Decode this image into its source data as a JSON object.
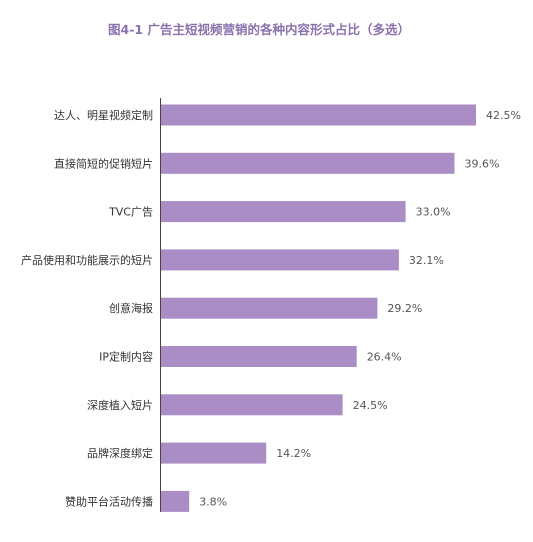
{
  "chart_data": {
    "type": "bar",
    "orientation": "horizontal",
    "title": "图4-1 广告主短视频营销的各种内容形式占比（多选）",
    "categories": [
      "达人、明星视频定制",
      "直接简短的促销短片",
      "TVC广告",
      "产品使用和功能展示的短片",
      "创意海报",
      "IP定制内容",
      "深度植入短片",
      "品牌深度绑定",
      "赞助平台活动传播"
    ],
    "values": [
      42.5,
      39.6,
      33.0,
      32.1,
      29.2,
      26.4,
      24.5,
      14.2,
      3.8
    ],
    "value_labels": [
      "42.5%",
      "39.6%",
      "33.0%",
      "32.1%",
      "29.2%",
      "26.4%",
      "24.5%",
      "14.2%",
      "3.8%"
    ],
    "xlabel": "",
    "ylabel": "",
    "xlim": [
      0,
      42.5
    ],
    "grid": false,
    "legend": "none",
    "colors": {
      "bar": "#a98dc4",
      "title": "#8a72ad"
    }
  }
}
